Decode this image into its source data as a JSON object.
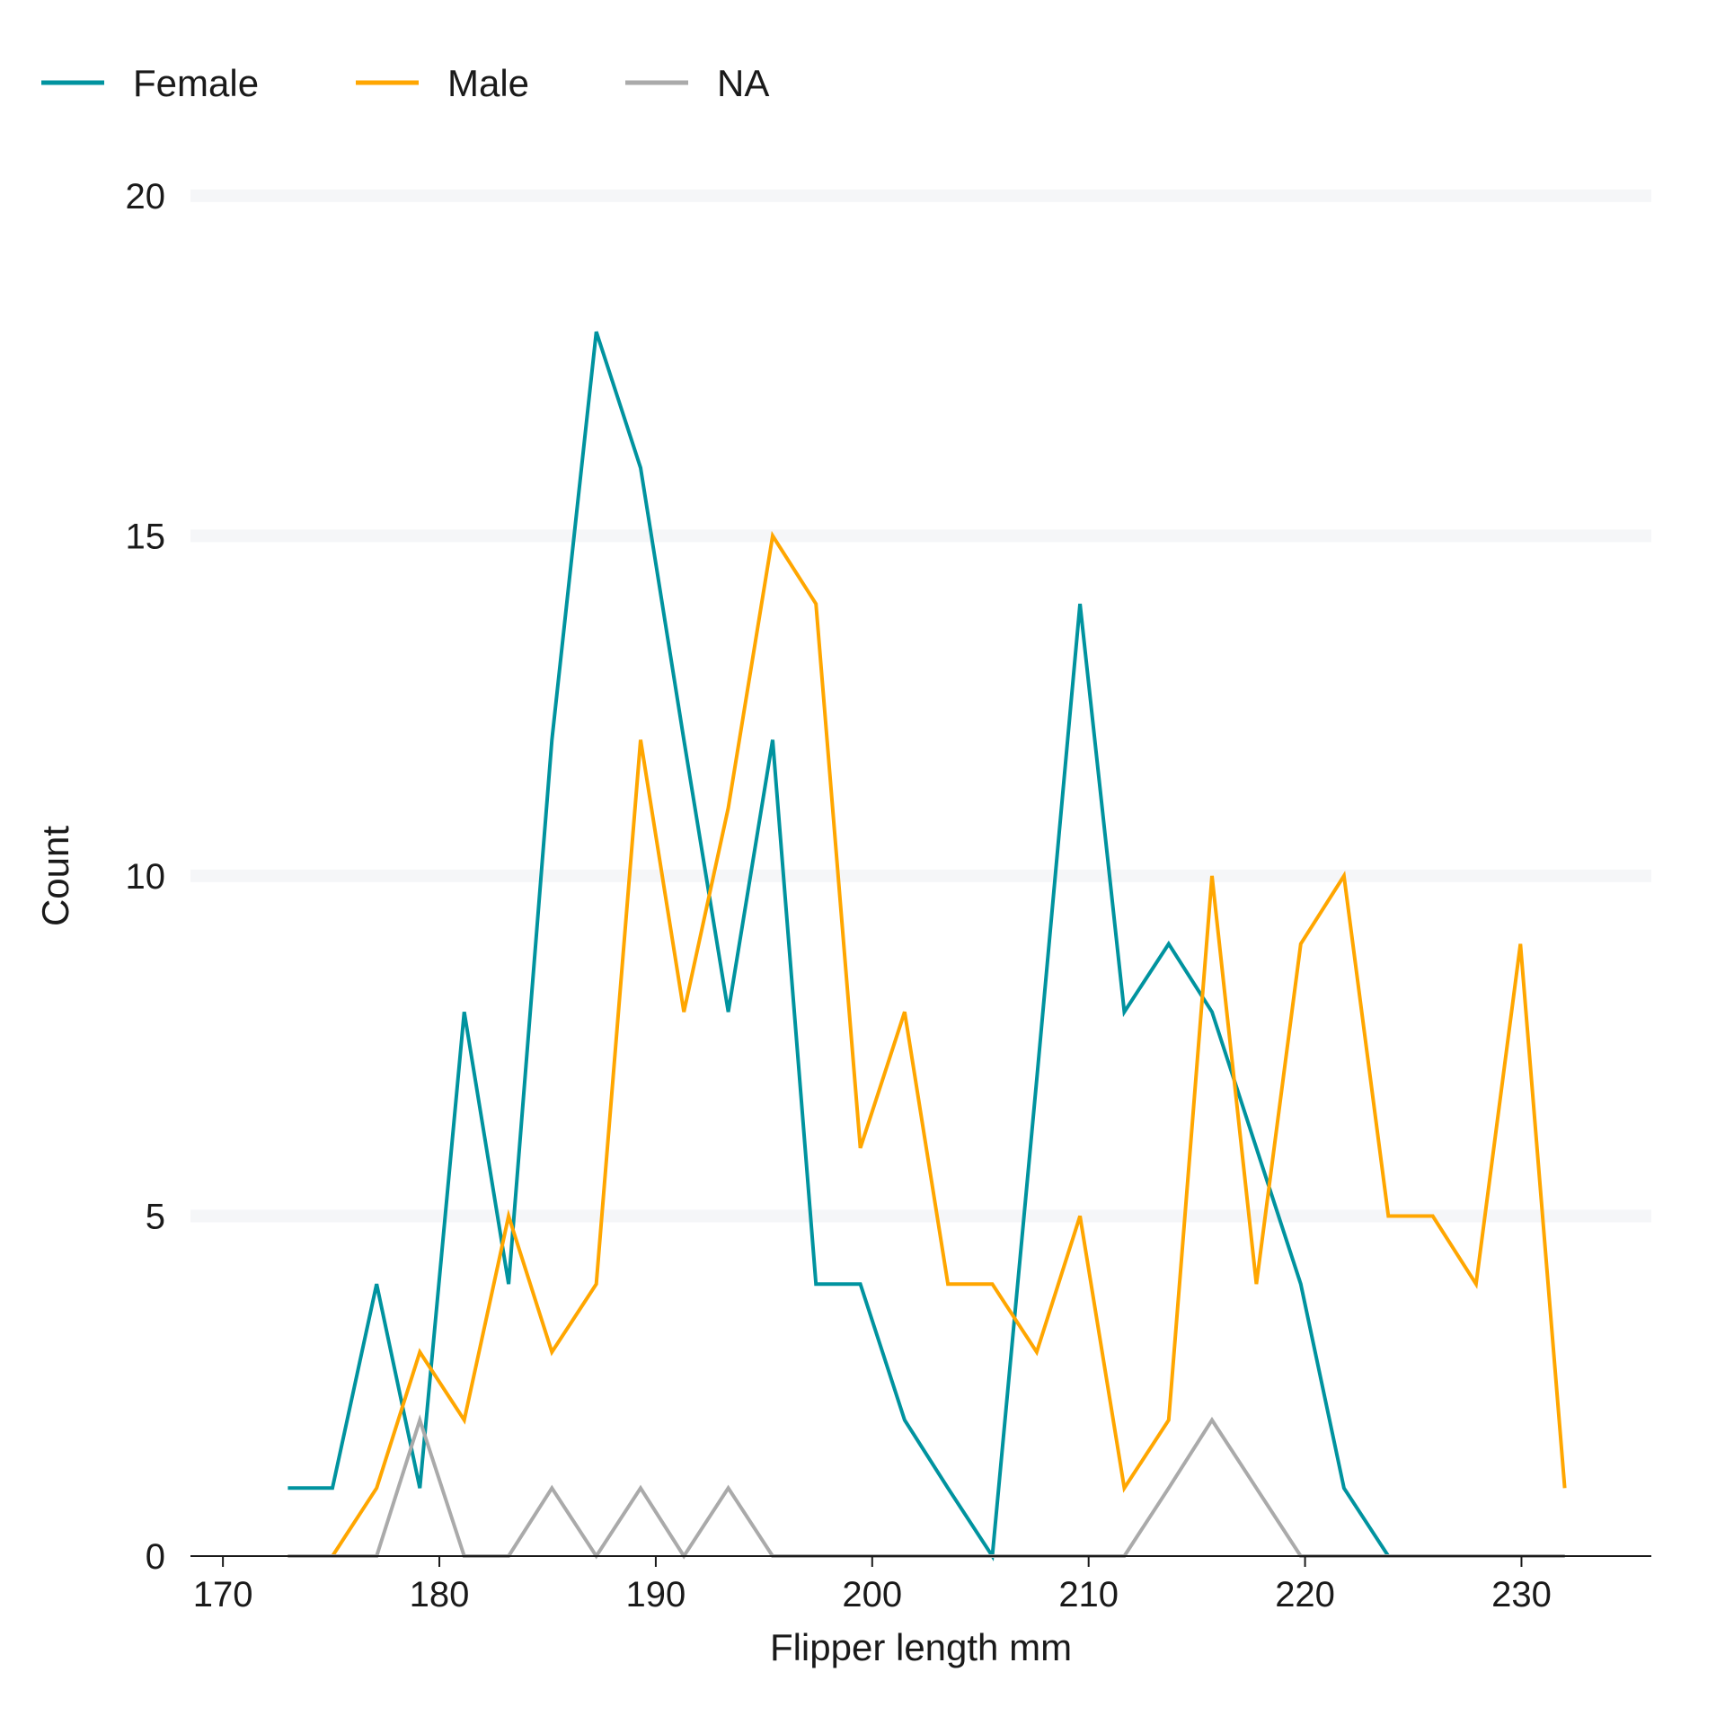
{
  "chart_data": {
    "type": "line",
    "xlabel": "Flipper length mm",
    "ylabel": "Count",
    "xlim": [
      168.5,
      236
    ],
    "ylim": [
      0,
      20.5
    ],
    "xticks": [
      170,
      180,
      190,
      200,
      210,
      220,
      230
    ],
    "yticks": [
      0,
      5,
      10,
      15,
      20
    ],
    "grid": "horizontal",
    "legend_position": "top-left",
    "x": [
      173,
      175.06,
      177.1,
      179.1,
      181.15,
      183.2,
      185.2,
      187.25,
      189.3,
      191.3,
      193.35,
      195.4,
      197.4,
      199.45,
      201.5,
      203.5,
      205.55,
      207.6,
      209.6,
      211.65,
      213.7,
      215.7,
      217.75,
      219.8,
      221.8,
      223.85,
      225.9,
      227.9,
      229.95,
      232
    ],
    "series": [
      {
        "name": "Female",
        "color": "#00939f",
        "values": [
          1,
          1,
          4,
          1,
          8,
          4,
          12,
          18,
          16,
          12,
          8,
          12,
          4,
          4,
          2,
          1,
          0,
          7,
          14,
          8,
          9,
          8,
          6,
          4,
          1,
          0,
          0,
          0,
          0,
          0
        ]
      },
      {
        "name": "Male",
        "color": "#ffa600",
        "values": [
          0,
          0,
          1,
          3,
          2,
          5,
          3,
          4,
          12,
          8,
          11,
          15,
          14,
          6,
          8,
          4,
          4,
          3,
          5,
          1,
          2,
          10,
          4,
          9,
          10,
          5,
          5,
          4,
          9,
          1
        ]
      },
      {
        "name": "NA",
        "color": "#aaaaaa",
        "values": [
          0,
          0,
          0,
          2,
          0,
          0,
          1,
          0,
          1,
          0,
          1,
          0,
          0,
          0,
          0,
          0,
          0,
          0,
          0,
          0,
          1,
          2,
          1,
          0,
          0,
          0,
          0,
          0,
          0,
          0
        ]
      }
    ]
  }
}
